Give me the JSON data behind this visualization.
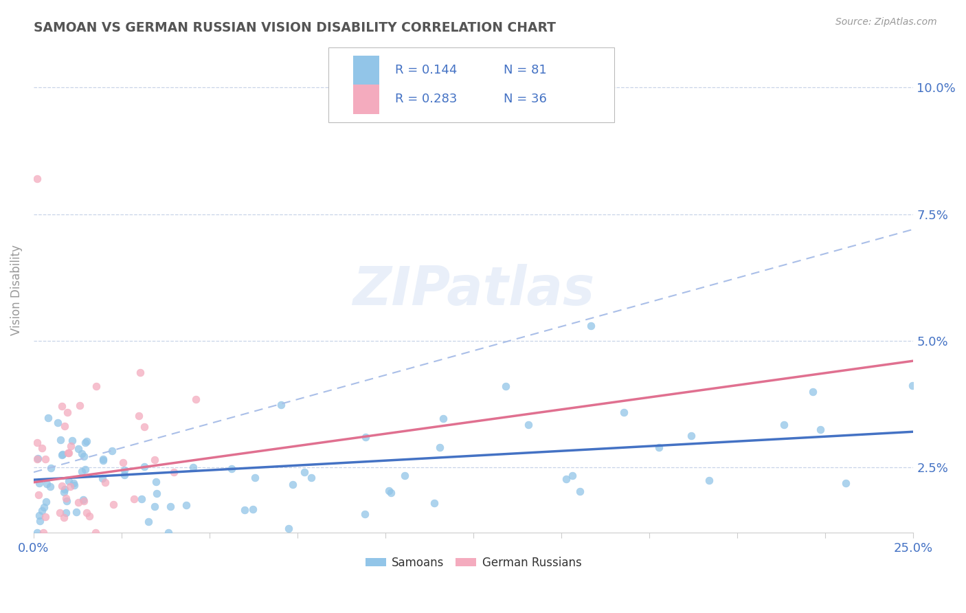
{
  "title": "SAMOAN VS GERMAN RUSSIAN VISION DISABILITY CORRELATION CHART",
  "source": "Source: ZipAtlas.com",
  "ylabel": "Vision Disability",
  "xlim": [
    0.0,
    0.25
  ],
  "ylim": [
    0.012,
    0.108
  ],
  "yticks": [
    0.025,
    0.05,
    0.075,
    0.1
  ],
  "ytick_labels": [
    "2.5%",
    "5.0%",
    "7.5%",
    "10.0%"
  ],
  "samoan_color": "#92C5E8",
  "german_russian_color": "#F4ABBE",
  "samoan_trend_color": "#4472C4",
  "german_russian_trend_color": "#E07090",
  "samoan_trend_dashed_color": "#AABFE8",
  "R_samoan": 0.144,
  "N_samoan": 81,
  "R_german_russian": 0.283,
  "N_german_russian": 36,
  "legend_text_color": "#4472C4",
  "N_text_color": "#E05050",
  "watermark": "ZIPatlas",
  "background_color": "#ffffff",
  "grid_color": "#c8d4e8",
  "title_color": "#555555",
  "axis_label_color": "#4472C4",
  "samoan_trend_y0": 0.0225,
  "samoan_trend_y1": 0.032,
  "german_russian_trend_y0": 0.022,
  "german_russian_trend_y1": 0.046
}
